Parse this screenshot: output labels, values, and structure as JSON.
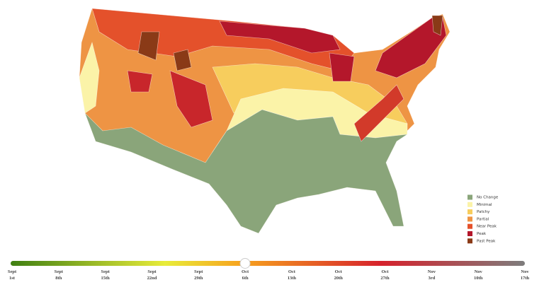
{
  "legend": [
    {
      "label": "No Change",
      "color": "#8aa57a"
    },
    {
      "label": "Minimal",
      "color": "#fbf3a8"
    },
    {
      "label": "Patchy",
      "color": "#f7cd5d"
    },
    {
      "label": "Partial",
      "color": "#ee9444"
    },
    {
      "label": "Near Peak",
      "color": "#e4512b"
    },
    {
      "label": "Peak",
      "color": "#b4172b"
    },
    {
      "label": "Past Peak",
      "color": "#8a3a17"
    }
  ],
  "timeline": [
    {
      "month": "Sept",
      "day": "1st"
    },
    {
      "month": "Sept",
      "day": "8th"
    },
    {
      "month": "Sept",
      "day": "15th"
    },
    {
      "month": "Sept",
      "day": "22nd"
    },
    {
      "month": "Sept",
      "day": "29th"
    },
    {
      "month": "Oct",
      "day": "6th"
    },
    {
      "month": "Oct",
      "day": "13th"
    },
    {
      "month": "Oct",
      "day": "20th"
    },
    {
      "month": "Oct",
      "day": "27th"
    },
    {
      "month": "Nov",
      "day": "3rd"
    },
    {
      "month": "Nov",
      "day": "10th"
    },
    {
      "month": "Nov",
      "day": "17th"
    }
  ]
}
